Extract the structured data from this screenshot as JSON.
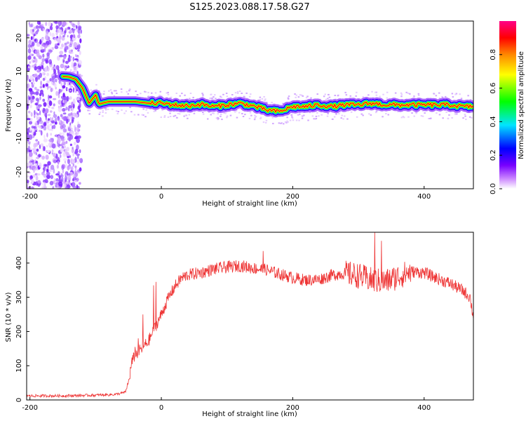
{
  "title": "S125.2023.088.17.58.G27",
  "chart_data": [
    {
      "type": "heatmap",
      "xlabel": "Height of straight line (km)",
      "ylabel": "Frequency (Hz)",
      "xlim": [
        -205,
        475
      ],
      "ylim": [
        -25,
        25
      ],
      "x_ticks": [
        -200,
        0,
        200,
        400
      ],
      "y_ticks": [
        -20,
        -10,
        0,
        10,
        20
      ],
      "colorbar": {
        "label": "Normalized spectral amplitude",
        "range": [
          0,
          1
        ],
        "ticks": [
          "0.0",
          "0.2",
          "0.4",
          "0.6",
          "0.8"
        ],
        "colors": [
          "#ffffff",
          "#9900ff",
          "#0000ff",
          "#00e5ff",
          "#00ff00",
          "#ffff00",
          "#ff8800",
          "#ff0000",
          "#ff0088"
        ]
      },
      "noise_region_x": [
        -205,
        -122
      ],
      "ridge": {
        "x": [
          -150,
          -140,
          -130,
          -120,
          -110,
          -100,
          -95,
          -90,
          -80,
          -60,
          -40,
          -20,
          0,
          20,
          40,
          60,
          80,
          100,
          120,
          140,
          160,
          180,
          200,
          220,
          240,
          260,
          280,
          300,
          320,
          340,
          360,
          380,
          400,
          420,
          440,
          460,
          475
        ],
        "frequency_hz": [
          8.5,
          8.3,
          7.6,
          5.0,
          0.5,
          3.0,
          0.2,
          0.5,
          1.0,
          1.0,
          1.0,
          0.5,
          0.5,
          0.0,
          -0.3,
          0.2,
          -0.5,
          0.0,
          0.5,
          -0.3,
          -1.5,
          -2.0,
          -0.5,
          -0.5,
          0.0,
          -0.5,
          0.0,
          0.0,
          0.5,
          0.0,
          0.0,
          0.0,
          0.0,
          0.0,
          0.0,
          -0.5,
          -0.5
        ]
      }
    },
    {
      "type": "line",
      "xlabel": "Height of straight line (km)",
      "ylabel": "SNR (10 * v/v)",
      "xlim": [
        -205,
        475
      ],
      "ylim": [
        0,
        490
      ],
      "x_ticks": [
        -200,
        0,
        200,
        400
      ],
      "y_ticks": [
        0,
        100,
        200,
        300,
        400
      ],
      "color": "#ee3333",
      "x": [
        -205,
        -150,
        -100,
        -70,
        -55,
        -50,
        -45,
        -40,
        -30,
        -20,
        -10,
        0,
        10,
        20,
        30,
        40,
        60,
        80,
        100,
        120,
        140,
        160,
        180,
        200,
        220,
        240,
        260,
        280,
        300,
        320,
        340,
        360,
        380,
        400,
        420,
        440,
        460,
        470,
        475
      ],
      "y": [
        12,
        12,
        14,
        16,
        22,
        50,
        110,
        130,
        150,
        170,
        210,
        250,
        295,
        330,
        355,
        365,
        372,
        382,
        388,
        392,
        385,
        380,
        368,
        357,
        350,
        352,
        365,
        370,
        363,
        350,
        345,
        360,
        375,
        372,
        355,
        340,
        318,
        300,
        240
      ],
      "spikes": [
        [
          -40,
          155
        ],
        [
          -35,
          180
        ],
        [
          -28,
          250
        ],
        [
          -12,
          335
        ],
        [
          -8,
          345
        ],
        [
          155,
          435
        ],
        [
          325,
          490
        ],
        [
          335,
          465
        ]
      ]
    }
  ]
}
